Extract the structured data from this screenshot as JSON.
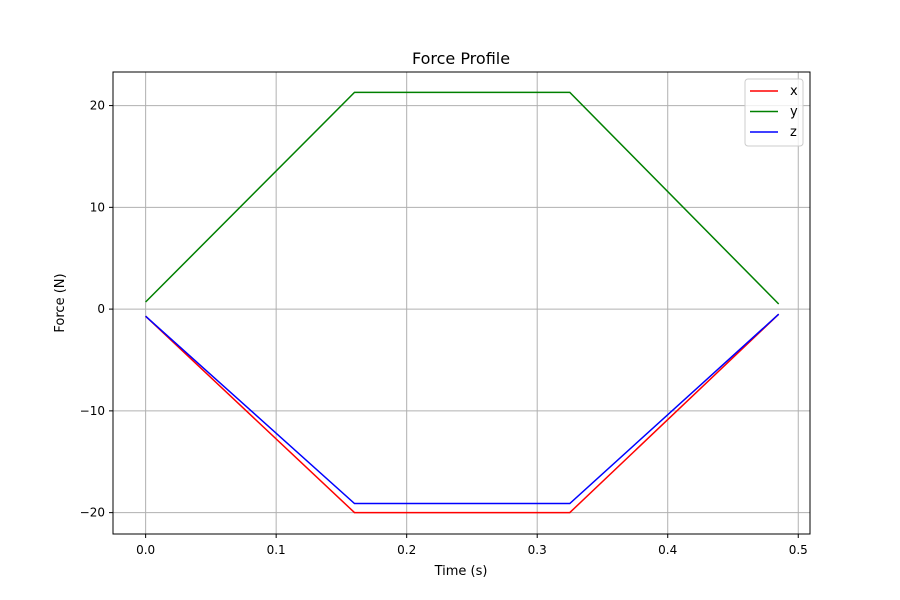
{
  "chart_data": {
    "type": "line",
    "title": "Force Profile",
    "xlabel": "Time (s)",
    "ylabel": "Force (N)",
    "xlim": [
      -0.025,
      0.509
    ],
    "ylim": [
      -22.1,
      23.3
    ],
    "xticks": [
      0.0,
      0.1,
      0.2,
      0.3,
      0.4,
      0.5
    ],
    "xtick_labels": [
      "0.0",
      "0.1",
      "0.2",
      "0.3",
      "0.4",
      "0.5"
    ],
    "yticks": [
      -20,
      -10,
      0,
      10,
      20
    ],
    "ytick_labels": [
      "−20",
      "−10",
      "0",
      "10",
      "20"
    ],
    "grid": true,
    "legend": "top-right",
    "series": [
      {
        "name": "x",
        "color": "#ff0000",
        "x": [
          0.0,
          0.16,
          0.325,
          0.485
        ],
        "y": [
          -0.7,
          -20.0,
          -20.0,
          -0.5
        ]
      },
      {
        "name": "y",
        "color": "#008000",
        "x": [
          0.0,
          0.16,
          0.325,
          0.485
        ],
        "y": [
          0.7,
          21.3,
          21.3,
          0.5
        ]
      },
      {
        "name": "z",
        "color": "#0000ff",
        "x": [
          0.0,
          0.16,
          0.325,
          0.485
        ],
        "y": [
          -0.7,
          -19.1,
          -19.1,
          -0.5
        ]
      }
    ]
  }
}
